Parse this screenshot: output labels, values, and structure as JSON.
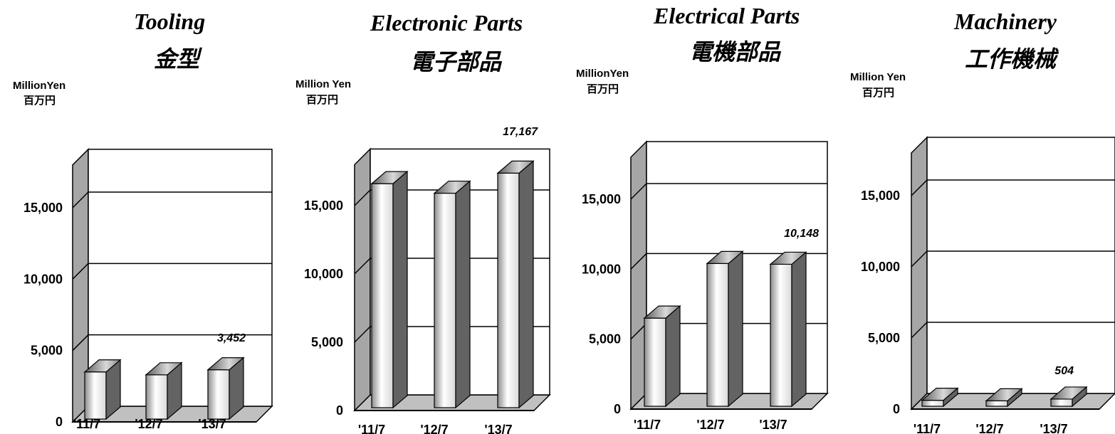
{
  "chart_data": [
    {
      "type": "bar",
      "title": "Tooling",
      "subtitle": "金型",
      "ylabel": "MillionYen",
      "ylabel_jp": "百万円",
      "categories": [
        "'11/7",
        "'12/7",
        "'13/7"
      ],
      "values": [
        3300,
        3100,
        3452
      ],
      "data_labels": [
        "",
        "",
        "3,452"
      ],
      "yticks": [
        "0",
        "5,000",
        "10,000",
        "15,000"
      ],
      "ylim": [
        0,
        18000
      ],
      "grid": true
    },
    {
      "type": "bar",
      "title": "Electronic Parts",
      "subtitle": "電子部品",
      "ylabel": "Million Yen",
      "ylabel_jp": "百万円",
      "categories": [
        "'11/7",
        "'12/7",
        "'13/7"
      ],
      "values": [
        16400,
        15700,
        17167
      ],
      "data_labels": [
        "",
        "",
        "17,167"
      ],
      "yticks": [
        "0",
        "5,000",
        "10,000",
        "15,000"
      ],
      "ylim": [
        0,
        18000
      ],
      "grid": true
    },
    {
      "type": "bar",
      "title": "Electrical Parts",
      "subtitle": "電機部品",
      "ylabel": "MillionYen",
      "ylabel_jp": "百万円",
      "categories": [
        "'11/7",
        "'12/7",
        "'13/7"
      ],
      "values": [
        6300,
        10200,
        10148
      ],
      "data_labels": [
        "",
        "",
        "10,148"
      ],
      "yticks": [
        "0",
        "5,000",
        "10,000",
        "15,000"
      ],
      "ylim": [
        0,
        18000
      ],
      "grid": true
    },
    {
      "type": "bar",
      "title": "Machinery",
      "subtitle": "工作機械",
      "ylabel": "Million Yen",
      "ylabel_jp": "百万円",
      "categories": [
        "'11/7",
        "'12/7",
        "'13/7"
      ],
      "values": [
        420,
        380,
        504
      ],
      "data_labels": [
        "",
        "",
        "504"
      ],
      "yticks": [
        "0",
        "5,000",
        "10,000",
        "15,000"
      ],
      "ylim": [
        0,
        18000
      ],
      "grid": true
    }
  ],
  "colors": {
    "wall_side": "#a6a6a6",
    "floor": "#c0c0c0",
    "bar_front_light": "#ffffff",
    "bar_front_dark": "#8c8c8c",
    "bar_side": "#636363",
    "bar_top": "#9a9a9a",
    "line": "#000000"
  }
}
